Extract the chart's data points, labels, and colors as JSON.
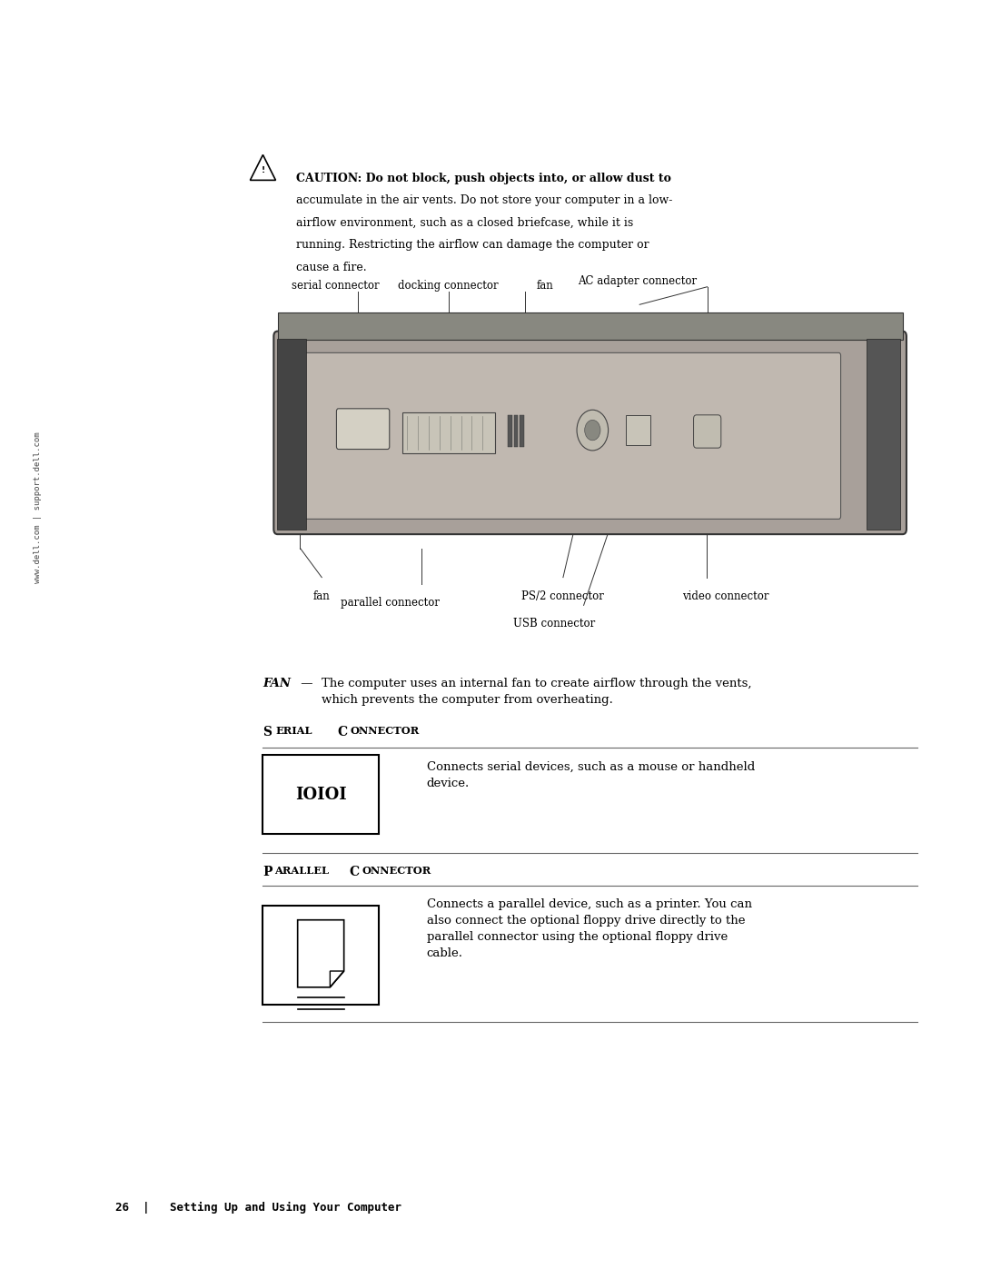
{
  "background_color": "#ffffff",
  "page_width": 10.8,
  "page_height": 13.97,
  "caution_text_line1": "CAUTION: Do not block, push objects into, or allow dust to",
  "caution_text_line2": "accumulate in the air vents. Do not store your computer in a low-",
  "caution_text_line3": "airflow environment, such as a closed briefcase, while it is",
  "caution_text_line4": "running. Restricting the airflow can damage the computer or",
  "caution_text_line5": "cause a fire.",
  "side_text": "www.dell.com | support.dell.com",
  "fan_section_title": "FAN",
  "fan_section_dash": " — ",
  "fan_section_text": "The computer uses an internal fan to create airflow through the vents,\nwhich prevents the computer from overheating.",
  "serial_icon_text": "IOIOI",
  "serial_description": "Connects serial devices, such as a mouse or handheld\ndevice.",
  "parallel_description": "Connects a parallel device, such as a printer. You can\nalso connect the optional floppy drive directly to the\nparallel connector using the optional floppy drive\ncable.",
  "footer_text": "26  |   Setting Up and Using Your Computer",
  "text_color": "#000000",
  "body_fontsize": 9.5,
  "label_fontsize": 8.5,
  "section_title_fontsize": 10,
  "footer_fontsize": 9
}
